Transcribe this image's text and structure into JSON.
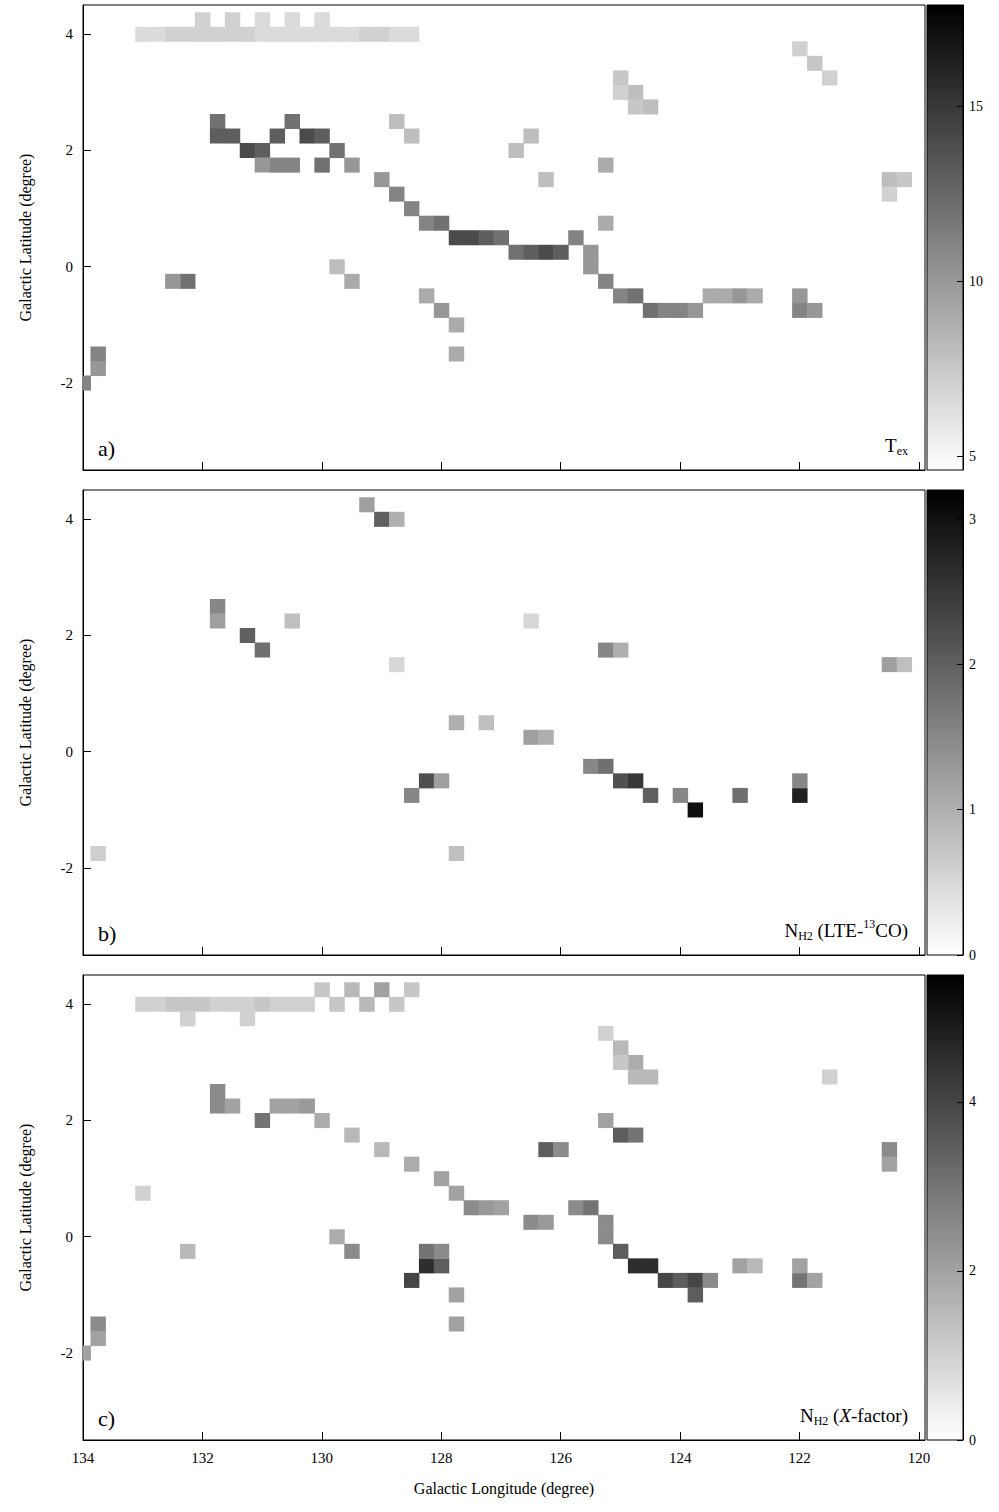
{
  "chart_data": [
    {
      "type": "heatmap",
      "panel": "a)",
      "annotation": [
        {
          "text": "T"
        },
        {
          "text": "ex",
          "sub": true
        }
      ],
      "ylabel": "Galactic Latitude (degree)",
      "xlim": [
        134,
        119.9
      ],
      "xticks": [
        134,
        132,
        130,
        128,
        126,
        124,
        122,
        120
      ],
      "ylim": [
        -3.5,
        4.5
      ],
      "yticks": [
        -2,
        0,
        2,
        4
      ],
      "tick_labels": "y",
      "grid": false,
      "color": "#000000",
      "cell_size": 0.25,
      "colorbar": {
        "lim": [
          4.6,
          17.9
        ],
        "ticks": [
          5,
          10,
          15
        ]
      },
      "cells": [
        [
          133,
          4,
          6.5
        ],
        [
          132.75,
          4,
          6.5
        ],
        [
          132.5,
          4,
          7
        ],
        [
          132.25,
          4,
          7
        ],
        [
          132,
          4,
          7
        ],
        [
          131.75,
          4,
          7
        ],
        [
          131.5,
          4,
          7
        ],
        [
          131.25,
          4,
          7
        ],
        [
          131,
          4,
          6.5
        ],
        [
          130.75,
          4,
          6.5
        ],
        [
          130.5,
          4,
          6.5
        ],
        [
          130.25,
          4,
          6.5
        ],
        [
          130,
          4,
          6.5
        ],
        [
          129.75,
          4,
          6.5
        ],
        [
          129.5,
          4,
          6.5
        ],
        [
          129.25,
          4,
          7
        ],
        [
          129,
          4,
          7
        ],
        [
          128.75,
          4,
          6.5
        ],
        [
          128.5,
          4,
          6.5
        ],
        [
          132,
          4.25,
          7
        ],
        [
          131.5,
          4.25,
          7
        ],
        [
          131,
          4.25,
          6.5
        ],
        [
          130.5,
          4.25,
          6.5
        ],
        [
          130,
          4.25,
          6.5
        ],
        [
          125,
          3.25,
          7.5
        ],
        [
          124.75,
          3,
          8
        ],
        [
          124.5,
          2.75,
          8
        ],
        [
          124.75,
          2.75,
          7.5
        ],
        [
          125,
          3,
          7
        ],
        [
          122,
          3.75,
          7
        ],
        [
          121.75,
          3.5,
          7.5
        ],
        [
          121.5,
          3.25,
          7
        ],
        [
          120.5,
          1.5,
          8
        ],
        [
          120.25,
          1.5,
          7.5
        ],
        [
          120.5,
          1.25,
          7
        ],
        [
          131.75,
          2.5,
          12
        ],
        [
          131.75,
          2.25,
          13
        ],
        [
          131.5,
          2.25,
          13
        ],
        [
          131.25,
          2,
          14
        ],
        [
          131,
          2,
          13
        ],
        [
          130.75,
          2.25,
          13
        ],
        [
          130.5,
          2.5,
          12
        ],
        [
          130.25,
          2.25,
          14
        ],
        [
          130,
          2.25,
          13
        ],
        [
          129.75,
          2,
          12
        ],
        [
          130,
          1.75,
          12
        ],
        [
          130.5,
          1.75,
          11
        ],
        [
          130.75,
          1.75,
          11
        ],
        [
          131,
          1.75,
          10
        ],
        [
          129.5,
          1.75,
          10
        ],
        [
          129,
          1.5,
          10
        ],
        [
          128.75,
          1.25,
          11
        ],
        [
          128.5,
          1,
          11
        ],
        [
          128.25,
          0.75,
          11
        ],
        [
          128,
          0.75,
          12
        ],
        [
          127.75,
          0.5,
          14
        ],
        [
          127.5,
          0.5,
          14
        ],
        [
          127.25,
          0.5,
          13
        ],
        [
          127,
          0.5,
          12
        ],
        [
          126.75,
          0.25,
          12
        ],
        [
          126.5,
          0.25,
          13
        ],
        [
          126.25,
          0.25,
          14
        ],
        [
          126,
          0.25,
          13
        ],
        [
          125.75,
          0.5,
          11
        ],
        [
          125.5,
          0.25,
          10
        ],
        [
          125.5,
          0,
          10
        ],
        [
          125.25,
          -0.25,
          11
        ],
        [
          125,
          -0.5,
          11
        ],
        [
          124.75,
          -0.5,
          12
        ],
        [
          124.5,
          -0.75,
          12
        ],
        [
          124.25,
          -0.75,
          11
        ],
        [
          124,
          -0.75,
          11
        ],
        [
          123.75,
          -0.75,
          10
        ],
        [
          123.5,
          -0.5,
          9
        ],
        [
          123.25,
          -0.5,
          9
        ],
        [
          123,
          -0.5,
          10
        ],
        [
          122.75,
          -0.5,
          9
        ],
        [
          122,
          -0.75,
          11
        ],
        [
          122,
          -0.5,
          10
        ],
        [
          121.75,
          -0.75,
          10
        ],
        [
          132.25,
          -0.25,
          12
        ],
        [
          132.5,
          -0.25,
          10
        ],
        [
          133.75,
          -1.5,
          11
        ],
        [
          133.75,
          -1.75,
          10
        ],
        [
          134,
          -2,
          11
        ],
        [
          128,
          -0.75,
          10
        ],
        [
          128.25,
          -0.5,
          9
        ],
        [
          127.75,
          -1,
          9
        ],
        [
          127.75,
          -1.5,
          9
        ],
        [
          129.5,
          -0.25,
          9
        ],
        [
          129.75,
          0,
          8
        ],
        [
          126.5,
          2.25,
          8
        ],
        [
          126.75,
          2,
          8
        ],
        [
          125.25,
          1.75,
          9
        ],
        [
          125.25,
          0.75,
          9
        ],
        [
          126.25,
          1.5,
          8
        ],
        [
          128.75,
          2.5,
          8
        ],
        [
          128.5,
          2.25,
          8
        ]
      ]
    },
    {
      "type": "heatmap",
      "panel": "b)",
      "annotation": [
        {
          "text": "N"
        },
        {
          "text": "H2",
          "sub": true
        },
        {
          "text": " (LTE-"
        },
        {
          "text": "13",
          "sup": true
        },
        {
          "text": "CO)"
        }
      ],
      "ylabel": "Galactic Latitude (degree)",
      "xlim": [
        134,
        119.9
      ],
      "xticks": [
        134,
        132,
        130,
        128,
        126,
        124,
        122,
        120
      ],
      "ylim": [
        -3.5,
        4.5
      ],
      "yticks": [
        -2,
        0,
        2,
        4
      ],
      "tick_labels": "y",
      "grid": false,
      "color": "#000000",
      "cell_size": 0.25,
      "colorbar": {
        "lim": [
          0,
          3.2
        ],
        "ticks": [
          0,
          1,
          2,
          3
        ]
      },
      "cells": [
        [
          131.75,
          2.5,
          1.5
        ],
        [
          131.75,
          2.25,
          1.2
        ],
        [
          131.25,
          2,
          2
        ],
        [
          131,
          1.75,
          1.8
        ],
        [
          130.5,
          2.25,
          0.8
        ],
        [
          129,
          4,
          2
        ],
        [
          129.25,
          4.25,
          1.2
        ],
        [
          128.75,
          4,
          1
        ],
        [
          125.25,
          1.75,
          1.5
        ],
        [
          125,
          1.75,
          1
        ],
        [
          120.5,
          1.5,
          1.2
        ],
        [
          120.25,
          1.5,
          0.8
        ],
        [
          127.75,
          0.5,
          1
        ],
        [
          127.25,
          0.5,
          0.8
        ],
        [
          126.5,
          0.25,
          1.2
        ],
        [
          126.25,
          0.25,
          1
        ],
        [
          128.25,
          -0.5,
          2.2
        ],
        [
          128.5,
          -0.75,
          1.5
        ],
        [
          128,
          -0.5,
          1.2
        ],
        [
          125.5,
          -0.25,
          1.5
        ],
        [
          125.25,
          -0.25,
          1.8
        ],
        [
          125,
          -0.5,
          2.2
        ],
        [
          124.75,
          -0.5,
          2.5
        ],
        [
          124.5,
          -0.75,
          2
        ],
        [
          124,
          -0.75,
          1.5
        ],
        [
          123.75,
          -1,
          3
        ],
        [
          123,
          -0.75,
          1.8
        ],
        [
          122,
          -0.75,
          2.8
        ],
        [
          122,
          -0.5,
          1.5
        ],
        [
          127.75,
          -1.75,
          0.8
        ],
        [
          133.75,
          -1.75,
          0.6
        ],
        [
          128.75,
          1.5,
          0.5
        ],
        [
          126.5,
          2.25,
          0.5
        ]
      ]
    },
    {
      "type": "heatmap",
      "panel": "c)",
      "annotation": [
        {
          "text": "N"
        },
        {
          "text": "H2",
          "sub": true
        },
        {
          "text": " ("
        },
        {
          "text": "X",
          "italic": true
        },
        {
          "text": "-factor)"
        }
      ],
      "xlabel": "Galactic Longitude (degree)",
      "ylabel": "Galactic Latitude (degree)",
      "xlim": [
        134,
        119.9
      ],
      "xticks": [
        134,
        132,
        130,
        128,
        126,
        124,
        122,
        120
      ],
      "ylim": [
        -3.5,
        4.5
      ],
      "yticks": [
        -2,
        0,
        2,
        4
      ],
      "tick_labels": true,
      "grid": false,
      "color": "#000000",
      "cell_size": 0.25,
      "colorbar": {
        "lim": [
          0,
          5.5
        ],
        "ticks": [
          0,
          2,
          4
        ]
      },
      "cells": [
        [
          133,
          4,
          1
        ],
        [
          132.75,
          4,
          1
        ],
        [
          132.5,
          4,
          1.2
        ],
        [
          132.25,
          4,
          1.2
        ],
        [
          132,
          4,
          1.2
        ],
        [
          131.75,
          4,
          1
        ],
        [
          131.5,
          4,
          1
        ],
        [
          131.25,
          4,
          1
        ],
        [
          131,
          4,
          1.2
        ],
        [
          130.75,
          4,
          1
        ],
        [
          130.5,
          4,
          1
        ],
        [
          130.25,
          4,
          1
        ],
        [
          130,
          4.25,
          1.2
        ],
        [
          129.75,
          4,
          1.2
        ],
        [
          129.5,
          4.25,
          1.5
        ],
        [
          129.25,
          4,
          1.5
        ],
        [
          129,
          4.25,
          2
        ],
        [
          128.75,
          4,
          1.2
        ],
        [
          128.5,
          4.25,
          1.2
        ],
        [
          132.25,
          3.75,
          1
        ],
        [
          131.25,
          3.75,
          1
        ],
        [
          125,
          3.25,
          1.5
        ],
        [
          124.75,
          3,
          1.8
        ],
        [
          124.5,
          2.75,
          1.5
        ],
        [
          124.75,
          2.75,
          1.5
        ],
        [
          125,
          3,
          1.2
        ],
        [
          125.25,
          3.5,
          1
        ],
        [
          125,
          1.75,
          3.5
        ],
        [
          124.75,
          1.75,
          3
        ],
        [
          125.25,
          2,
          2
        ],
        [
          126.25,
          1.5,
          3.5
        ],
        [
          126,
          1.5,
          2.5
        ],
        [
          120.5,
          1.5,
          2.5
        ],
        [
          120.5,
          1.25,
          2
        ],
        [
          121.5,
          2.75,
          1
        ],
        [
          131.75,
          2.5,
          2.5
        ],
        [
          131.75,
          2.25,
          2.5
        ],
        [
          131.5,
          2.25,
          2
        ],
        [
          131,
          2,
          3
        ],
        [
          130.75,
          2.25,
          2
        ],
        [
          130.5,
          2.25,
          2
        ],
        [
          130.25,
          2.25,
          2.2
        ],
        [
          130,
          2,
          1.8
        ],
        [
          129.5,
          1.75,
          1.5
        ],
        [
          129,
          1.5,
          1.5
        ],
        [
          128.5,
          1.25,
          1.8
        ],
        [
          128,
          1,
          2
        ],
        [
          127.75,
          0.75,
          2
        ],
        [
          127.5,
          0.5,
          2.5
        ],
        [
          127.25,
          0.5,
          2.2
        ],
        [
          127,
          0.5,
          2
        ],
        [
          126.5,
          0.25,
          2.5
        ],
        [
          126.25,
          0.25,
          2.2
        ],
        [
          125.75,
          0.5,
          2.5
        ],
        [
          125.5,
          0.5,
          3
        ],
        [
          125.25,
          0.25,
          2.5
        ],
        [
          125.25,
          0,
          2.5
        ],
        [
          125,
          -0.25,
          3.5
        ],
        [
          124.75,
          -0.5,
          4.5
        ],
        [
          124.5,
          -0.5,
          4.5
        ],
        [
          124.25,
          -0.75,
          4
        ],
        [
          124,
          -0.75,
          3.5
        ],
        [
          123.75,
          -0.75,
          4
        ],
        [
          123.75,
          -1,
          3.5
        ],
        [
          123.5,
          -0.75,
          2.5
        ],
        [
          123,
          -0.5,
          2
        ],
        [
          122.75,
          -0.5,
          1.5
        ],
        [
          122,
          -0.75,
          3
        ],
        [
          122,
          -0.5,
          2
        ],
        [
          121.75,
          -0.75,
          2
        ],
        [
          128.25,
          -0.5,
          4.5
        ],
        [
          128,
          -0.5,
          3.5
        ],
        [
          128.5,
          -0.75,
          4
        ],
        [
          128.25,
          -0.25,
          3
        ],
        [
          128,
          -0.25,
          2.5
        ],
        [
          127.75,
          -1,
          2
        ],
        [
          127.75,
          -1.5,
          2
        ],
        [
          129.5,
          -0.25,
          2.5
        ],
        [
          129.75,
          0,
          1.8
        ],
        [
          132.25,
          -0.25,
          1.5
        ],
        [
          133.75,
          -1.5,
          2.5
        ],
        [
          133.75,
          -1.75,
          2
        ],
        [
          134,
          -2,
          2
        ],
        [
          133,
          0.75,
          1
        ]
      ]
    }
  ]
}
